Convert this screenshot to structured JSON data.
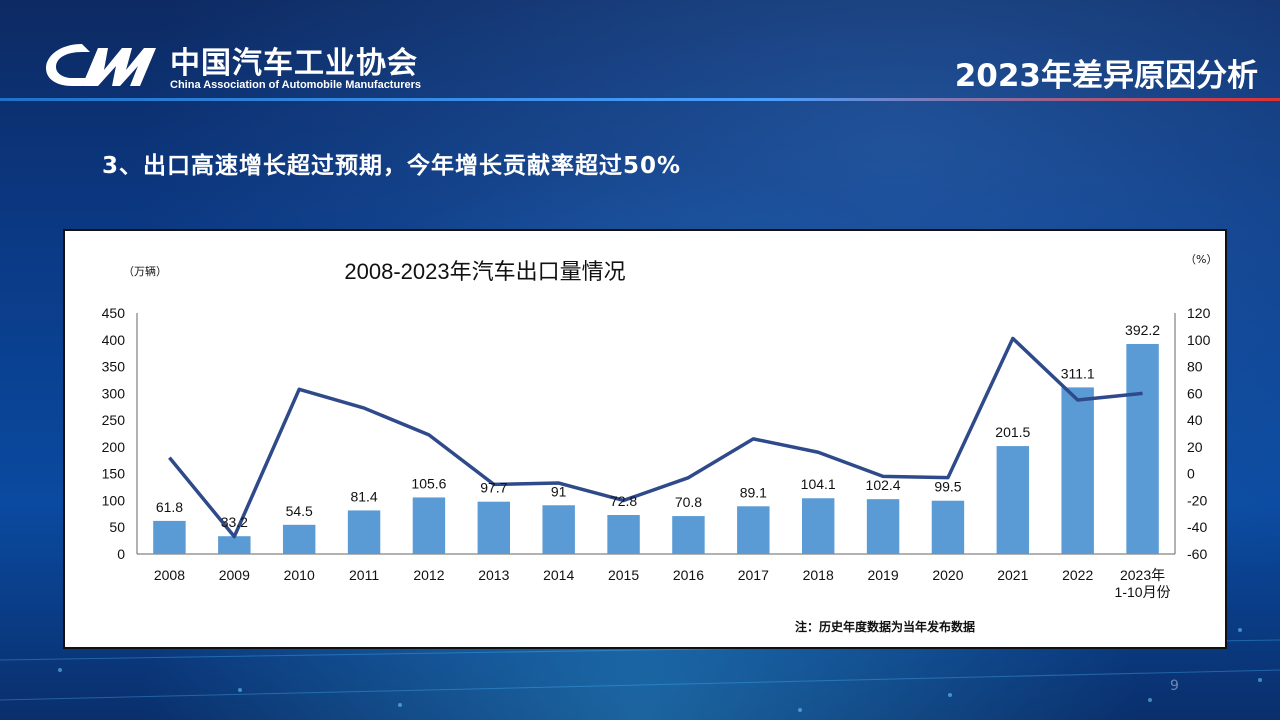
{
  "header": {
    "org_name_cn": "中国汽车工业协会",
    "org_name_en": "China Association of Automobile Manufacturers",
    "section_title": "2023年差异原因分析"
  },
  "subtitle": "3、出口高速增长超过预期，今年增长贡献率超过50%",
  "page_number": "9",
  "colors": {
    "bar": "#5b9bd5",
    "line": "#2f4a8a",
    "background": "#0b3a86"
  },
  "chart_data": {
    "type": "bar",
    "title": "2008-2023年汽车出口量情况",
    "ylabel": "（万辆）",
    "y2label": "（%）",
    "note": "注：历史年度数据为当年发布数据",
    "categories": [
      "2008",
      "2009",
      "2010",
      "2011",
      "2012",
      "2013",
      "2014",
      "2015",
      "2016",
      "2017",
      "2018",
      "2019",
      "2020",
      "2021",
      "2022",
      "2023年\n1-10月份"
    ],
    "ylim": [
      0,
      450
    ],
    "y_ticks": [
      0,
      50,
      100,
      150,
      200,
      250,
      300,
      350,
      400,
      450
    ],
    "y2lim": [
      -60,
      120
    ],
    "y2_ticks": [
      -60,
      -40,
      -20,
      0,
      20,
      40,
      60,
      80,
      100,
      120
    ],
    "series": [
      {
        "kind": "bar",
        "values": [
          61.8,
          33.2,
          54.5,
          81.4,
          105.6,
          97.7,
          91,
          72.8,
          70.8,
          89.1,
          104.1,
          102.4,
          99.5,
          201.5,
          311.1,
          392.2
        ],
        "labels": [
          "61.8",
          "33.2",
          "54.5",
          "81.4",
          "105.6",
          "97.7",
          "91",
          "72.8",
          "70.8",
          "89.1",
          "104.1",
          "102.4",
          "99.5",
          "201.5",
          "311.1",
          "392.2"
        ]
      },
      {
        "kind": "line",
        "axis": "right",
        "values": [
          12,
          -47,
          63,
          49,
          29,
          -8,
          -7,
          -20,
          -3,
          26,
          16,
          -2,
          -3,
          101,
          55,
          60
        ]
      }
    ],
    "grid": false,
    "legend": "none"
  }
}
